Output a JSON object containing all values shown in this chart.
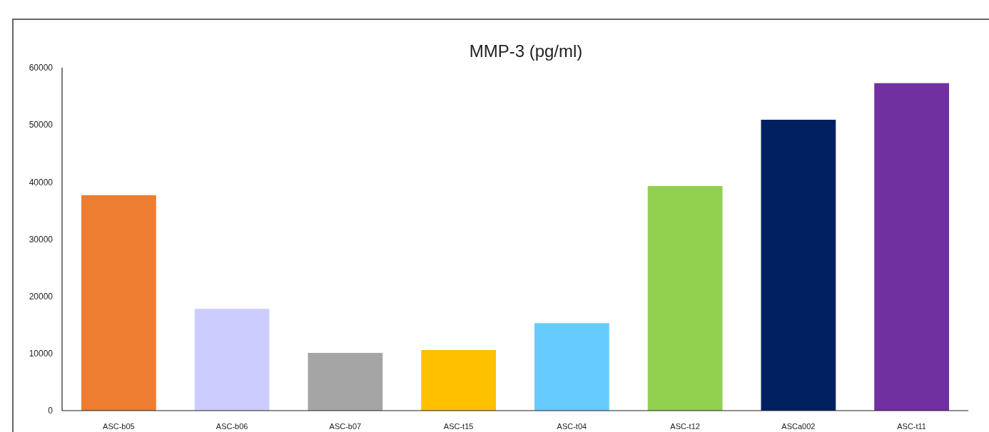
{
  "chart_data": {
    "type": "bar",
    "title": "MMP-3 (pg/ml)",
    "categories": [
      "ASC-b05",
      "ASC-b06",
      "ASC-b07",
      "ASC-t15",
      "ASC-t04",
      "ASC-t12",
      "ASCa002",
      "ASC-t11"
    ],
    "values": [
      37700,
      17800,
      10100,
      10600,
      15300,
      39300,
      50900,
      57300
    ],
    "colors": [
      "#ed7d31",
      "#ccccff",
      "#a5a5a5",
      "#ffc000",
      "#66ccff",
      "#92d050",
      "#002060",
      "#7030a0"
    ],
    "ylim": [
      0,
      60000
    ],
    "yticks": [
      0,
      10000,
      20000,
      30000,
      40000,
      50000,
      60000
    ],
    "grid": false
  }
}
